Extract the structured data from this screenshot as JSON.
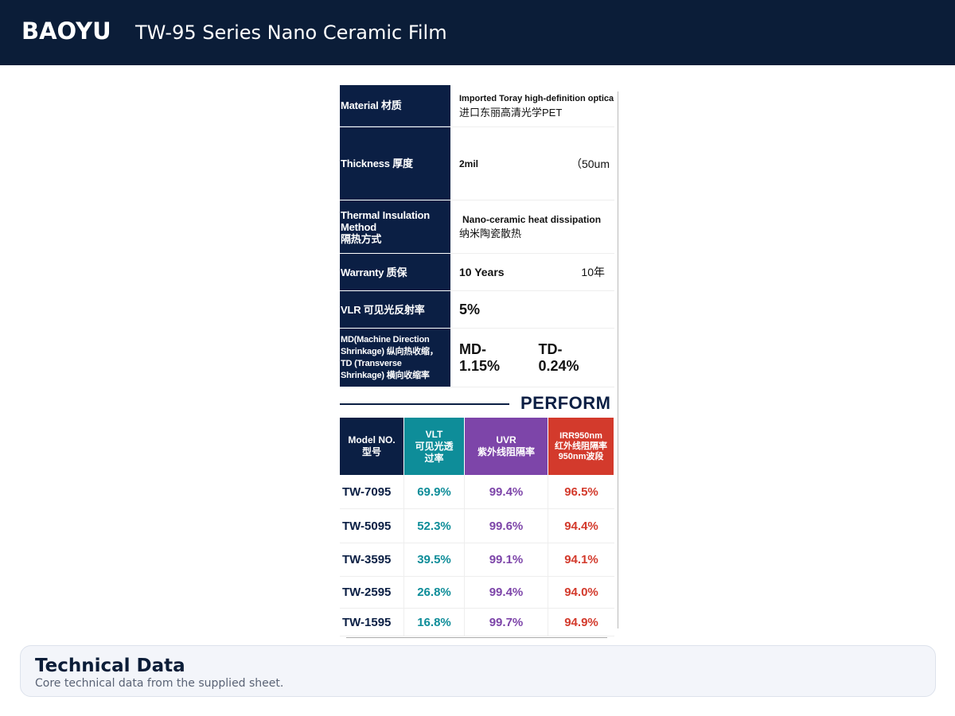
{
  "header": {
    "brand": "BAOYU",
    "title": "TW-95 Series Nano Ceramic Film"
  },
  "spec_table": {
    "rows": [
      {
        "label": [
          "Material 材质"
        ],
        "values": [
          "Imported Toray high-definition optica",
          "进口东丽高清光学PET"
        ]
      },
      {
        "label": [
          "Thickness 厚度"
        ],
        "values": [
          "2mil",
          "（50um"
        ]
      },
      {
        "label": [
          "Thermal Insulation",
          "Method",
          "隔热方式"
        ],
        "values": [
          "Nano-ceramic heat dissipation",
          "纳米陶瓷散热"
        ]
      },
      {
        "label": [
          "Warranty 质保"
        ],
        "values": [
          "10 Years",
          "10年"
        ]
      },
      {
        "label": [
          "VLR 可见光反射率"
        ],
        "values": [
          "5%"
        ]
      },
      {
        "label": [
          "MD(Machine Direction",
          "Shrinkage) 纵向热收缩，",
          "TD (Transverse",
          "Shrinkage) 横向收缩率"
        ],
        "values": [
          "MD-1.15%",
          "TD-0.24%"
        ]
      }
    ]
  },
  "performance": {
    "heading": "PERFORM",
    "columns": [
      [
        "Model NO.",
        "型号"
      ],
      [
        "VLT",
        "可见光透",
        "过率"
      ],
      [
        "UVR",
        "紫外线阻隔率"
      ],
      [
        "IRR950nm",
        "红外线阻隔率",
        "950nm波段"
      ]
    ],
    "rows": [
      [
        "TW-7095",
        "69.9%",
        "99.4%",
        "96.5%"
      ],
      [
        "TW-5095",
        "52.3%",
        "99.6%",
        "94.4%"
      ],
      [
        "TW-3595",
        "39.5%",
        "99.1%",
        "94.1%"
      ],
      [
        "TW-2595",
        "26.8%",
        "99.4%",
        "94.0%"
      ],
      [
        "TW-1595",
        "16.8%",
        "99.7%",
        "94.9%"
      ]
    ]
  },
  "footer": {
    "title": "Technical Data",
    "subtitle": "Core technical data from the supplied sheet."
  }
}
